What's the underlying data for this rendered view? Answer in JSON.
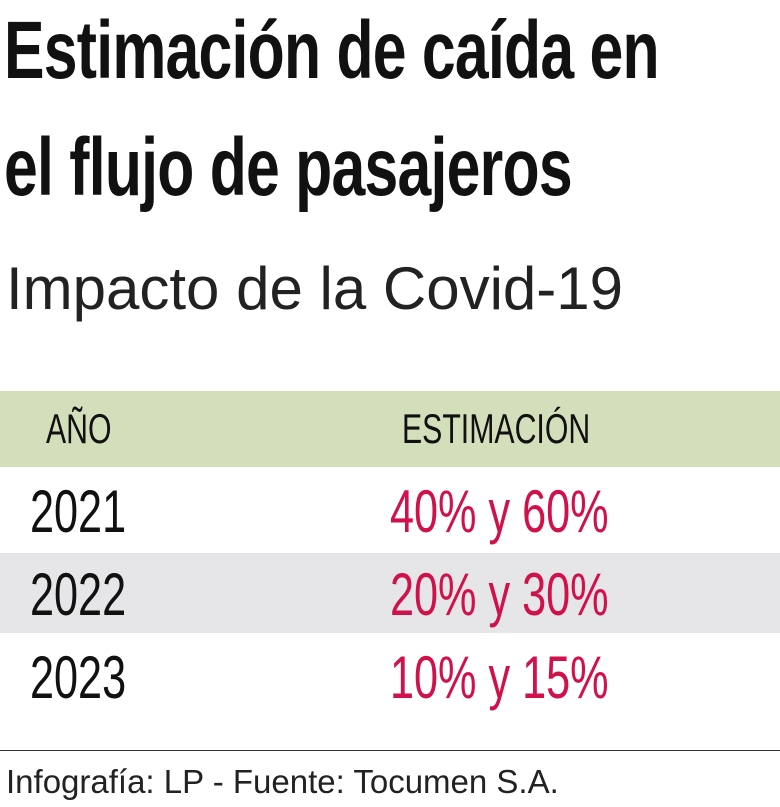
{
  "title_line1": "Estimación de caída en",
  "title_line2": "el flujo de pasajeros",
  "subtitle": "Impacto de la Covid-19",
  "colors": {
    "header_band": "#d3dfbb",
    "alt_row": "#e6e6e8",
    "value_text": "#d0114a"
  },
  "chart_data": {
    "type": "table",
    "columns": [
      "AÑO",
      "ESTIMACIÓN"
    ],
    "rows": [
      {
        "year": "2021",
        "estimate": "40% y 60%"
      },
      {
        "year": "2022",
        "estimate": "20% y 30%"
      },
      {
        "year": "2023",
        "estimate": "10% y 15%"
      }
    ]
  },
  "footer": "Infografía: LP - Fuente: Tocumen S.A."
}
